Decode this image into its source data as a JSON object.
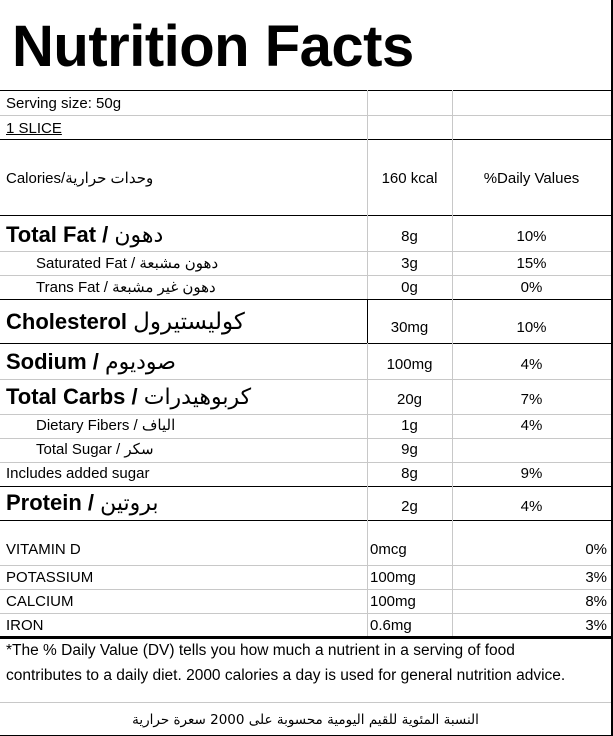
{
  "title": "Nutrition Facts",
  "serving": {
    "size": "Serving size:  50g",
    "unit": "1 SLICE"
  },
  "calories": {
    "label": "Calories/وحدات حرارية",
    "value": "160 kcal",
    "dv_header": "%Daily Values"
  },
  "nutrients": [
    {
      "label": "Total Fat / ",
      "arabic": "دهون",
      "amount": "8g",
      "dv": "10%"
    },
    {
      "label": "Saturated Fat / دهون مشبعة",
      "amount": "3g",
      "dv": "15%"
    },
    {
      "label": "Trans Fat / دهون غير مشبعة",
      "amount": "0g",
      "dv": "0%"
    },
    {
      "label": "Cholesterol ",
      "arabic": "كوليستيرول",
      "amount": "30mg",
      "dv": "10%"
    },
    {
      "label": "Sodium / ",
      "arabic": "صوديوم",
      "amount": "100mg",
      "dv": "4%"
    },
    {
      "label": "Total Carbs / ",
      "arabic": "كربوهيدرات",
      "amount": "20g",
      "dv": "7%"
    },
    {
      "label": "Dietary Fibers / الياف",
      "amount": "1g",
      "dv": "4%"
    },
    {
      "label": "Total Sugar / سكر",
      "amount": "9g",
      "dv": ""
    },
    {
      "label": "Includes added sugar",
      "amount": "8g",
      "dv": "9%"
    },
    {
      "label": "Protein / ",
      "arabic": "بروتين",
      "amount": "2g",
      "dv": "4%"
    }
  ],
  "vitamins": [
    {
      "label": "VITAMIN D",
      "amount": "0mcg",
      "dv": "0%"
    },
    {
      "label": "POTASSIUM",
      "amount": "100mg",
      "dv": "3%"
    },
    {
      "label": "CALCIUM",
      "amount": "100mg",
      "dv": "8%"
    },
    {
      "label": "IRON",
      "amount": "0.6mg",
      "dv": "3%"
    }
  ],
  "footnote": {
    "line1": "*The % Daily Value (DV) tells you how much a nutrient in a serving of food",
    "line2": "contributes to a daily diet. 2000 calories a day is used for general nutrition advice.",
    "arabic": "النسبة المئوية للقيم اليومية محسوبة على 2000 سعرة حرارية"
  }
}
